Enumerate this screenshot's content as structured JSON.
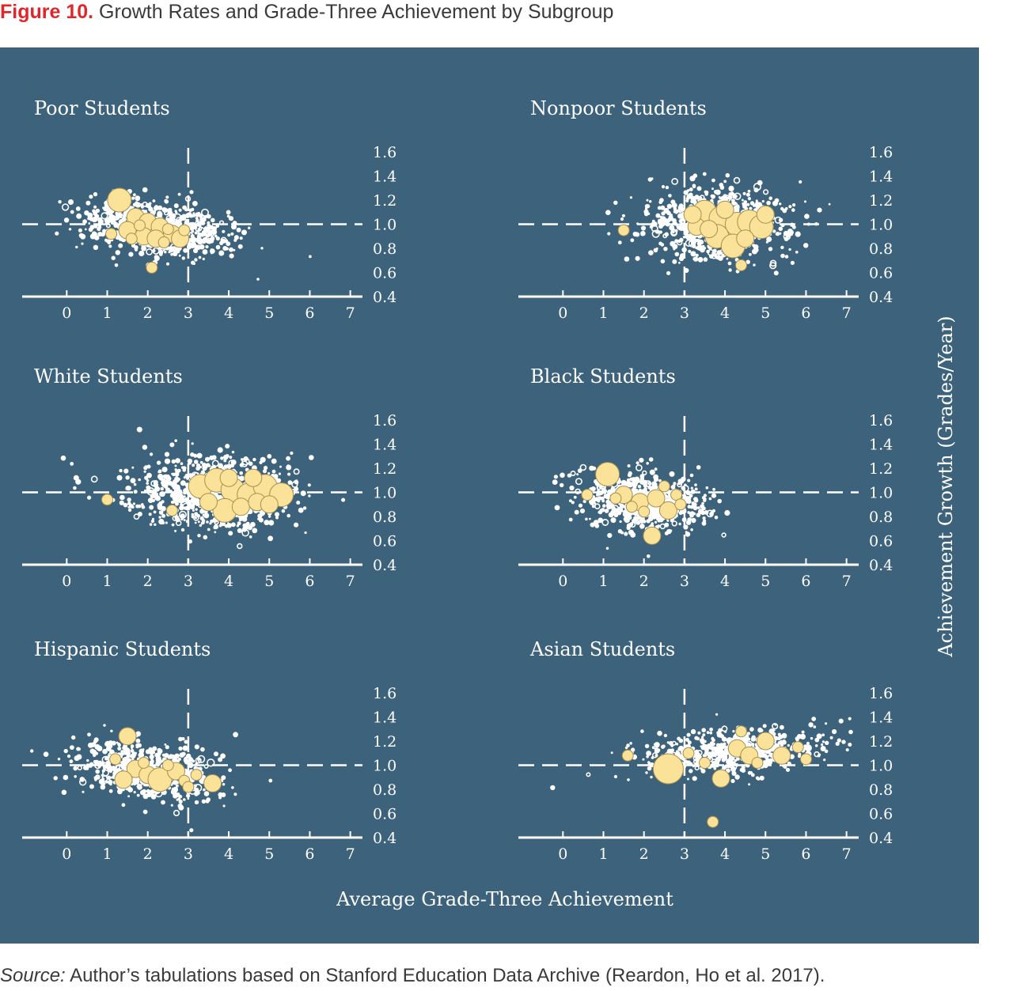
{
  "figure": {
    "label": "Figure 10.",
    "title": "Growth Rates and Grade-Three Achievement by Subgroup"
  },
  "source": {
    "label": "Source:",
    "text": "Author’s tabulations based on Stanford Education Data Archive (Reardon, Ho et al. 2017)."
  },
  "colors": {
    "background": "#3d627c",
    "points": "#ffffff",
    "highlight": "#fbe299",
    "highlight_outline": "#a89050"
  },
  "chart_data": {
    "type": "scatter",
    "xlabel": "Average Grade-Three Achievement",
    "ylabel": "Achievement Growth (Grades/Year)",
    "xlim": [
      -1.1,
      7.3
    ],
    "ylim": [
      0.4,
      1.6
    ],
    "x_ticks": [
      "0",
      "1",
      "2",
      "3",
      "4",
      "5",
      "6",
      "7"
    ],
    "y_ticks": [
      "0.4",
      "0.6",
      "0.8",
      "1.0",
      "1.2",
      "1.4",
      "1.6"
    ],
    "reference_lines": {
      "x": 3,
      "y": 1.0
    },
    "grid": false,
    "panels": [
      {
        "name": "Poor Students",
        "cloud": {
          "cx": 2.2,
          "cy": 0.97,
          "sx": 0.95,
          "sy": 0.12,
          "rho": -0.3,
          "n": 700
        },
        "highlights": [
          {
            "x": 1.3,
            "y": 1.2,
            "s": 3
          },
          {
            "x": 1.7,
            "y": 1.06,
            "s": 2
          },
          {
            "x": 2.0,
            "y": 1.02,
            "s": 2
          },
          {
            "x": 2.3,
            "y": 0.98,
            "s": 2
          },
          {
            "x": 2.6,
            "y": 0.92,
            "s": 2
          },
          {
            "x": 1.5,
            "y": 0.95,
            "s": 2
          },
          {
            "x": 2.8,
            "y": 0.88,
            "s": 2
          },
          {
            "x": 1.9,
            "y": 0.9,
            "s": 2
          },
          {
            "x": 2.2,
            "y": 0.88,
            "s": 2
          },
          {
            "x": 2.5,
            "y": 0.96,
            "s": 1
          },
          {
            "x": 1.1,
            "y": 0.92,
            "s": 1
          },
          {
            "x": 2.1,
            "y": 0.64,
            "s": 1
          },
          {
            "x": 1.8,
            "y": 0.99,
            "s": 1
          },
          {
            "x": 2.4,
            "y": 0.85,
            "s": 1
          },
          {
            "x": 1.6,
            "y": 0.88,
            "s": 1
          },
          {
            "x": 2.9,
            "y": 0.95,
            "s": 1
          }
        ]
      },
      {
        "name": "Nonpoor Students",
        "cloud": {
          "cx": 3.8,
          "cy": 1.0,
          "sx": 0.9,
          "sy": 0.15,
          "rho": 0.0,
          "n": 760
        },
        "highlights": [
          {
            "x": 3.5,
            "y": 1.1,
            "s": 3
          },
          {
            "x": 3.9,
            "y": 1.05,
            "s": 3
          },
          {
            "x": 4.3,
            "y": 1.0,
            "s": 3
          },
          {
            "x": 4.6,
            "y": 1.02,
            "s": 3
          },
          {
            "x": 4.9,
            "y": 0.98,
            "s": 3
          },
          {
            "x": 3.8,
            "y": 0.9,
            "s": 3
          },
          {
            "x": 4.2,
            "y": 0.82,
            "s": 3
          },
          {
            "x": 3.3,
            "y": 0.98,
            "s": 2
          },
          {
            "x": 4.0,
            "y": 1.12,
            "s": 2
          },
          {
            "x": 4.5,
            "y": 0.88,
            "s": 2
          },
          {
            "x": 3.6,
            "y": 0.96,
            "s": 2
          },
          {
            "x": 1.5,
            "y": 0.95,
            "s": 1
          },
          {
            "x": 4.4,
            "y": 0.66,
            "s": 1
          },
          {
            "x": 3.2,
            "y": 1.08,
            "s": 2
          },
          {
            "x": 5.0,
            "y": 1.08,
            "s": 2
          }
        ]
      },
      {
        "name": "White Students",
        "cloud": {
          "cx": 3.6,
          "cy": 1.0,
          "sx": 1.0,
          "sy": 0.15,
          "rho": 0.0,
          "n": 780
        },
        "highlights": [
          {
            "x": 3.3,
            "y": 1.05,
            "s": 3
          },
          {
            "x": 3.7,
            "y": 1.1,
            "s": 3
          },
          {
            "x": 4.1,
            "y": 1.02,
            "s": 3
          },
          {
            "x": 4.5,
            "y": 0.98,
            "s": 3
          },
          {
            "x": 4.9,
            "y": 1.05,
            "s": 3
          },
          {
            "x": 5.3,
            "y": 0.98,
            "s": 3
          },
          {
            "x": 3.9,
            "y": 0.85,
            "s": 3
          },
          {
            "x": 4.3,
            "y": 0.88,
            "s": 2
          },
          {
            "x": 4.7,
            "y": 0.92,
            "s": 2
          },
          {
            "x": 3.5,
            "y": 0.92,
            "s": 2
          },
          {
            "x": 1.0,
            "y": 0.94,
            "s": 1
          },
          {
            "x": 5.0,
            "y": 0.9,
            "s": 2
          },
          {
            "x": 4.0,
            "y": 1.12,
            "s": 2
          },
          {
            "x": 2.6,
            "y": 0.85,
            "s": 1
          },
          {
            "x": 4.6,
            "y": 1.12,
            "s": 2
          }
        ]
      },
      {
        "name": "Black Students",
        "cloud": {
          "cx": 2.0,
          "cy": 0.93,
          "sx": 0.8,
          "sy": 0.12,
          "rho": -0.2,
          "n": 620
        },
        "highlights": [
          {
            "x": 1.1,
            "y": 1.15,
            "s": 3
          },
          {
            "x": 1.5,
            "y": 0.98,
            "s": 2
          },
          {
            "x": 1.9,
            "y": 0.92,
            "s": 2
          },
          {
            "x": 2.3,
            "y": 0.95,
            "s": 2
          },
          {
            "x": 2.6,
            "y": 0.85,
            "s": 2
          },
          {
            "x": 2.2,
            "y": 0.64,
            "s": 2
          },
          {
            "x": 1.7,
            "y": 0.88,
            "s": 1
          },
          {
            "x": 2.8,
            "y": 0.98,
            "s": 1
          },
          {
            "x": 2.0,
            "y": 0.84,
            "s": 1
          },
          {
            "x": 1.3,
            "y": 0.95,
            "s": 1
          },
          {
            "x": 2.5,
            "y": 1.05,
            "s": 1
          },
          {
            "x": 0.6,
            "y": 0.98,
            "s": 1
          },
          {
            "x": 2.9,
            "y": 0.9,
            "s": 1
          }
        ]
      },
      {
        "name": "Hispanic Students",
        "cloud": {
          "cx": 2.0,
          "cy": 0.95,
          "sx": 0.85,
          "sy": 0.12,
          "rho": -0.3,
          "n": 620
        },
        "highlights": [
          {
            "x": 1.5,
            "y": 1.24,
            "s": 2
          },
          {
            "x": 1.7,
            "y": 0.97,
            "s": 2
          },
          {
            "x": 2.0,
            "y": 0.92,
            "s": 2
          },
          {
            "x": 2.3,
            "y": 0.88,
            "s": 3
          },
          {
            "x": 2.7,
            "y": 0.95,
            "s": 2
          },
          {
            "x": 3.6,
            "y": 0.85,
            "s": 2
          },
          {
            "x": 1.4,
            "y": 0.88,
            "s": 2
          },
          {
            "x": 2.9,
            "y": 0.87,
            "s": 1
          },
          {
            "x": 1.9,
            "y": 1.02,
            "s": 1
          },
          {
            "x": 3.2,
            "y": 0.92,
            "s": 1
          },
          {
            "x": 2.5,
            "y": 1.0,
            "s": 1
          },
          {
            "x": 1.2,
            "y": 1.05,
            "s": 1
          },
          {
            "x": 3.0,
            "y": 0.82,
            "s": 1
          }
        ]
      },
      {
        "name": "Asian Students",
        "cloud": {
          "cx": 4.2,
          "cy": 1.12,
          "sx": 1.1,
          "sy": 0.1,
          "rho": 0.3,
          "n": 560
        },
        "highlights": [
          {
            "x": 2.6,
            "y": 0.97,
            "s": 4
          },
          {
            "x": 4.3,
            "y": 1.14,
            "s": 2
          },
          {
            "x": 4.6,
            "y": 1.08,
            "s": 2
          },
          {
            "x": 3.9,
            "y": 0.89,
            "s": 2
          },
          {
            "x": 5.0,
            "y": 1.2,
            "s": 2
          },
          {
            "x": 5.4,
            "y": 1.08,
            "s": 2
          },
          {
            "x": 3.5,
            "y": 1.02,
            "s": 1
          },
          {
            "x": 4.8,
            "y": 1.02,
            "s": 1
          },
          {
            "x": 1.6,
            "y": 1.08,
            "s": 1
          },
          {
            "x": 5.8,
            "y": 1.15,
            "s": 1
          },
          {
            "x": 3.7,
            "y": 0.53,
            "s": 1
          },
          {
            "x": 4.4,
            "y": 1.28,
            "s": 1
          },
          {
            "x": 6.0,
            "y": 1.05,
            "s": 1
          },
          {
            "x": 3.1,
            "y": 1.1,
            "s": 1
          }
        ]
      }
    ]
  }
}
